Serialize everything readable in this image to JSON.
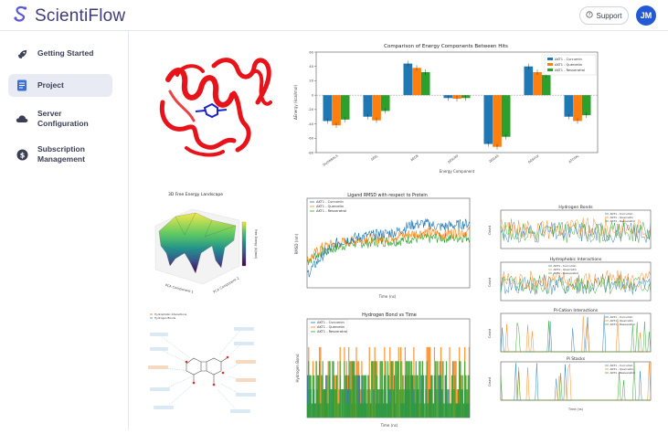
{
  "app": {
    "name": "ScientiFlow"
  },
  "header": {
    "support_label": "Support",
    "user_initials": "JM"
  },
  "sidebar": {
    "items": [
      {
        "label": "Getting Started",
        "icon": "rocket-icon"
      },
      {
        "label": "Project",
        "icon": "document-icon"
      },
      {
        "label": "Server Configuration",
        "icon": "cloud-icon"
      },
      {
        "label": "Subscription Management",
        "icon": "dollar-icon"
      }
    ]
  },
  "colors": {
    "curcumin": "#1f77b4",
    "quercetin": "#ff7f0e",
    "resveratrol": "#2ca02c",
    "accent": "#2459d6",
    "protein": "#e8121a"
  },
  "legend": [
    "AKT1 - Curcumin",
    "AKT1 - Quercetin",
    "AKT1 - Resveratrol"
  ],
  "chart_data": [
    {
      "type": "bar",
      "title": "Comparison of Energy Components Between Hits",
      "xlabel": "Energy Component",
      "ylabel": "ΔEnergy (kcal/mol)",
      "ylim": [
        -80,
        60
      ],
      "yticks": [
        "-80",
        "-60",
        "-40",
        "-20",
        "0",
        "20",
        "40",
        "60"
      ],
      "categories": [
        "DUONBALS",
        "ΔEEL",
        "ΔEGB",
        "ΔESURF",
        "ΔGGAS",
        "ΔGSOLV",
        "ΔTOTAL"
      ],
      "series": [
        {
          "name": "AKT1 - Curcumin",
          "values": [
            -36,
            -30,
            44,
            -4,
            -68,
            40,
            -30
          ]
        },
        {
          "name": "AKT1 - Quercetin",
          "values": [
            -42,
            -35,
            38,
            -5,
            -72,
            32,
            -36
          ]
        },
        {
          "name": "AKT1 - Resveratrol",
          "values": [
            -34,
            -22,
            32,
            -4,
            -58,
            28,
            -28
          ]
        }
      ]
    },
    {
      "type": "line",
      "title": "Ligand RMSD with respect to Protein",
      "xlabel": "Time (ns)",
      "ylabel": "RMSD (nm)",
      "ylim": [
        0,
        1.0
      ],
      "xlim": [
        0,
        200
      ],
      "series": [
        {
          "name": "AKT1 - Curcumin",
          "values": [
            0.15,
            0.35,
            0.5,
            0.55,
            0.58,
            0.6,
            0.62,
            0.7,
            0.72,
            0.68,
            0.7,
            0.72
          ]
        },
        {
          "name": "AKT1 - Quercetin",
          "values": [
            0.3,
            0.45,
            0.5,
            0.52,
            0.55,
            0.55,
            0.58,
            0.6,
            0.62,
            0.6,
            0.62,
            0.63
          ]
        },
        {
          "name": "AKT1 - Resveratrol",
          "values": [
            0.3,
            0.4,
            0.45,
            0.5,
            0.5,
            0.52,
            0.52,
            0.55,
            0.55,
            0.56,
            0.56,
            0.57
          ]
        }
      ]
    },
    {
      "type": "bar",
      "title": "Hydrogen Bond vs Time",
      "xlabel": "Time (ns)",
      "ylabel": "Hydrogen Bond",
      "ylim": [
        0,
        7
      ],
      "xlim": [
        0,
        200
      ]
    },
    {
      "type": "line",
      "title": "Hydrogen Bonds",
      "ylabel": "Count"
    },
    {
      "type": "line",
      "title": "Hydrophobic Interactions",
      "ylabel": "Count"
    },
    {
      "type": "line",
      "title": "Pi-Cation Interactions",
      "ylabel": "Count"
    },
    {
      "type": "line",
      "title": "Pi Stacks",
      "ylabel": "Count",
      "xlabel": "Time (ns)"
    },
    {
      "type": "heatmap",
      "title": "3D Free Energy Landscape",
      "xlabel": "PCA Component 1",
      "ylabel": "PCA Component 2",
      "zlabel": "Free Energy (kJ/mol)"
    }
  ],
  "diagram": {
    "legend": [
      "Hydrophobic Interactions",
      "Hydrogen Bonds"
    ]
  }
}
